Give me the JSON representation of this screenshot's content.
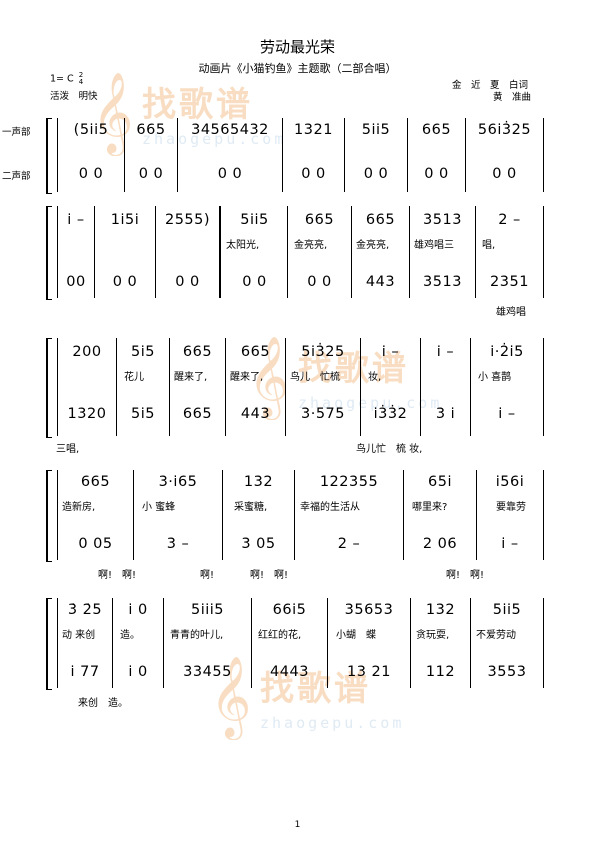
{
  "header": {
    "title": "劳动最光荣",
    "subtitle": "动画片《小猫钓鱼》主题歌（二部合唱）",
    "key": "1= C",
    "time_top": "2",
    "time_bottom": "4",
    "tempo": "活泼　明快",
    "lyricist": "金　近　夏　白词",
    "composer": "黄　准曲"
  },
  "voices": {
    "v1": "一声部",
    "v2": "二声部"
  },
  "watermark": {
    "brand": "找歌谱",
    "url": "zhaogepu.com"
  },
  "systems": [
    {
      "v1": [
        "(5i̇i̇5",
        "665",
        "34565432",
        "1321",
        "5i̇i̇5",
        "665",
        "56i̇3̇25"
      ],
      "v2": [
        "0  0",
        "0  0",
        "0   0",
        "0  0",
        "0  0",
        "0  0",
        "0   0"
      ],
      "lyrics1": [],
      "lyrics2": []
    },
    {
      "v1": [
        "i̇ –",
        "1i̇5i̇",
        "2555)",
        "5i̇i̇5",
        "665",
        "665",
        "3513",
        "2  –"
      ],
      "v2": [
        "00",
        "0  0",
        "0  0",
        "0  0",
        "0  0",
        "443",
        "3513",
        "2351"
      ],
      "lyrics1": [
        "太阳光,",
        "金亮亮,",
        "金亮亮,",
        "雄鸡唱三",
        "唱,"
      ],
      "lyrics2": [
        "雄鸡唱"
      ]
    },
    {
      "v1": [
        "200",
        "5i̇5",
        "665",
        "665",
        "5i̇3̇25",
        "i̇  –",
        "i̇ –",
        "i̇·2̇i̇5"
      ],
      "v2": [
        "1320",
        "5i̇5",
        "665",
        "443",
        "3·575",
        "i̇3̇3̇2",
        "3 i̇",
        "i̇  –"
      ],
      "lyrics1": [
        "花儿",
        "醒来了,",
        "醒来了,",
        "鸟儿　忙梳",
        "妆,",
        "小 喜鹊"
      ],
      "lyrics2": [
        "三唱,",
        "鸟儿忙　梳 妆,"
      ]
    },
    {
      "v1": [
        "665",
        "3·i̇65",
        "132",
        "122355",
        "65i̇",
        "i̇56i̇"
      ],
      "v2": [
        "0  05",
        "3  –",
        "3  05",
        "2   –",
        "2  06",
        "i̇   –"
      ],
      "lyrics1": [
        "造新房,",
        "小 蜜蜂",
        "采蜜糖,",
        "幸福的生活从",
        "哪里来?",
        "要靠劳"
      ],
      "lyrics2": [
        "啊!　啊!",
        "啊!",
        "啊!　啊!",
        "啊!　啊!"
      ]
    },
    {
      "v1": [
        "3̇ 2̇5",
        "i̇  0",
        "5i̇i̇i̇5",
        "66i̇5",
        "35653",
        "132",
        "5i̇i̇5"
      ],
      "v2": [
        "i̇ 77",
        "i̇  0",
        "33455",
        "4443",
        "13  21",
        "112",
        "3553"
      ],
      "lyrics1": [
        "动 来创",
        "造。",
        "青青的叶儿,",
        "红红的花,",
        "小蝴　蝶",
        "贪玩耍,",
        "不爱劳动"
      ],
      "lyrics2": [
        "来创　造。"
      ]
    }
  ],
  "page_number": "1"
}
